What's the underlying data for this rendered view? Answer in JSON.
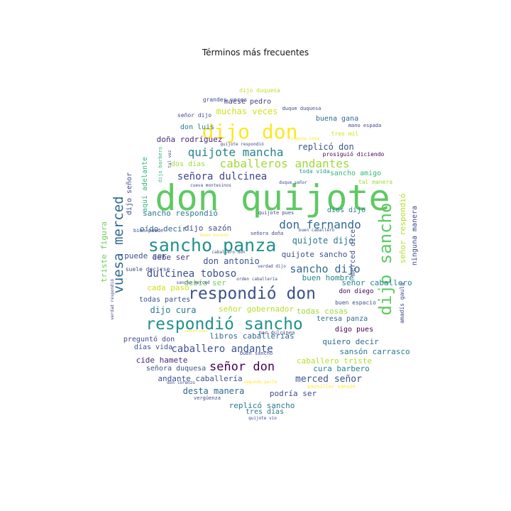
{
  "title": "Términos más frecuentes",
  "words": [
    {
      "text": "don quijote",
      "color": "#5ec962"
    },
    {
      "text": "dijo don",
      "color": "#fde725"
    },
    {
      "text": "sancho panza",
      "color": "#21918c"
    },
    {
      "text": "respondió don",
      "color": "#3b528b"
    },
    {
      "text": "respondió sancho",
      "color": "#21918c"
    },
    {
      "text": "dijo sancho",
      "color": "#5ec962"
    },
    {
      "text": "vuesa merced",
      "color": "#31688e"
    },
    {
      "text": "caballeros andantes",
      "color": "#a0da39"
    },
    {
      "text": "quijote mancha",
      "color": "#26828e"
    },
    {
      "text": "señora dulcinea",
      "color": "#414487"
    },
    {
      "text": "don fernando",
      "color": "#31688e"
    },
    {
      "text": "dulcinea toboso",
      "color": "#3b528b"
    },
    {
      "text": "sancho dijo",
      "color": "#31688e"
    },
    {
      "text": "señor don",
      "color": "#440154"
    },
    {
      "text": "caballero andante",
      "color": "#3b528b"
    },
    {
      "text": "muchas veces",
      "color": "#d0e11c"
    },
    {
      "text": "replicó don",
      "color": "#3b528b"
    },
    {
      "text": "sancho respondió",
      "color": "#2a788e"
    },
    {
      "text": "quijote dijo",
      "color": "#2a788e"
    },
    {
      "text": "quijote sancho",
      "color": "#3b528b"
    },
    {
      "text": "don antonio",
      "color": "#3b528b"
    },
    {
      "text": "merced señor",
      "color": "#3b528b"
    },
    {
      "text": "dijo cura",
      "color": "#2a788e"
    },
    {
      "text": "señor caballero",
      "color": "#26828e"
    },
    {
      "text": "todas cosas",
      "color": "#a0da39"
    },
    {
      "text": "buen hombre",
      "color": "#26828e"
    },
    {
      "text": "quiero decir",
      "color": "#31688e"
    },
    {
      "text": "desta manera",
      "color": "#31688e"
    },
    {
      "text": "replicó sancho",
      "color": "#2a788e"
    },
    {
      "text": "libros caballerías",
      "color": "#31688e"
    },
    {
      "text": "señor gobernador",
      "color": "#b5de2b"
    },
    {
      "text": "doña rodríguez",
      "color": "#482878"
    },
    {
      "text": "maese pedro",
      "color": "#443983"
    },
    {
      "text": "sancho amigo",
      "color": "#35b779"
    },
    {
      "text": "señor respondió",
      "color": "#b5de2b"
    },
    {
      "text": "ninguna manera",
      "color": "#3e4989"
    },
    {
      "text": "merced dice",
      "color": "#3b528b"
    },
    {
      "text": "triste figura",
      "color": "#6ece58"
    },
    {
      "text": "dijo sazón",
      "color": "#3e4989"
    },
    {
      "text": "oído decir",
      "color": "#31688e"
    },
    {
      "text": "debe ser",
      "color": "#443983"
    },
    {
      "text": "puede ser",
      "color": "#3b528b"
    },
    {
      "text": "cada paso",
      "color": "#d0e11c"
    },
    {
      "text": "debía ser",
      "color": "#6ece58"
    },
    {
      "text": "todas partes",
      "color": "#3b528b"
    },
    {
      "text": "cide hamete",
      "color": "#482878"
    },
    {
      "text": "sansón carrasco",
      "color": "#2a788e"
    },
    {
      "text": "caballero triste",
      "color": "#b5de2b"
    },
    {
      "text": "cura barbero",
      "color": "#26828e"
    },
    {
      "text": "señora duquesa",
      "color": "#3b528b"
    },
    {
      "text": "andante caballería",
      "color": "#3b528b"
    },
    {
      "text": "podría ser",
      "color": "#3e4989"
    },
    {
      "text": "tres días",
      "color": "#2a788e"
    },
    {
      "text": "digo pues",
      "color": "#440154"
    },
    {
      "text": "teresa panza",
      "color": "#31688e"
    },
    {
      "text": "don diego",
      "color": "#440154"
    },
    {
      "text": "preguntó don",
      "color": "#3e4989"
    },
    {
      "text": "días vida",
      "color": "#3b528b"
    },
    {
      "text": "don luis",
      "color": "#2a788e"
    },
    {
      "text": "dios dijo",
      "color": "#26828e"
    },
    {
      "text": "dos días",
      "color": "#a0da39"
    },
    {
      "text": "buena gana",
      "color": "#31688e"
    },
    {
      "text": "prosiguió diciendo",
      "color": "#440154"
    },
    {
      "text": "dijo señor",
      "color": "#3e4989"
    },
    {
      "text": "aquí adelante",
      "color": "#35b779"
    },
    {
      "text": "tres mil",
      "color": "#d0e11c"
    },
    {
      "text": "toda vida",
      "color": "#1f9e89"
    },
    {
      "text": "tal manera",
      "color": "#a0da39"
    },
    {
      "text": "amadís gaula",
      "color": "#3e4989"
    },
    {
      "text": "buen espacio",
      "color": "#3b528b"
    },
    {
      "text": "dijo duquesa",
      "color": "#bddf26"
    },
    {
      "text": "grandes voces",
      "color": "#3e4989"
    },
    {
      "text": "duque duquesa",
      "color": "#3e4989"
    },
    {
      "text": "señor dijo",
      "color": "#3e4989"
    },
    {
      "text": "mano espada",
      "color": "#3e4989"
    },
    {
      "text": "quijote respondió",
      "color": "#3e4989"
    },
    {
      "text": "ninguna cosa",
      "color": "#fde725"
    },
    {
      "text": "dijo barbero",
      "color": "#35b779"
    },
    {
      "text": "cueva montesinos",
      "color": "#3e4989"
    },
    {
      "text": "duque señor",
      "color": "#3e4989"
    },
    {
      "text": "quijote pues",
      "color": "#3e4989"
    },
    {
      "text": "bien puede",
      "color": "#3e4989"
    },
    {
      "text": "buen suceso",
      "color": "#fde725"
    },
    {
      "text": "señora doña",
      "color": "#3e4989"
    },
    {
      "text": "buen caballero",
      "color": "#3e4989"
    },
    {
      "text": "caballero don",
      "color": "#3e4989"
    },
    {
      "text": "suele decirse",
      "color": "#3e4989"
    },
    {
      "text": "verdad dijo",
      "color": "#3e4989"
    },
    {
      "text": "orden caballería",
      "color": "#3e4989"
    },
    {
      "text": "sancho merced",
      "color": "#3e4989"
    },
    {
      "text": "verdad respondió",
      "color": "#3e4989"
    },
    {
      "text": "par dulcinea",
      "color": "#3e4989"
    },
    {
      "text": "buen sancho",
      "color": "#3e4989"
    },
    {
      "text": "sancho pues",
      "color": "#fde725"
    },
    {
      "text": "don lorenzo",
      "color": "#3e4989"
    },
    {
      "text": "segundo parte",
      "color": "#fde725"
    },
    {
      "text": "bachiller sansón",
      "color": "#fde725"
    },
    {
      "text": "vergüenza",
      "color": "#3e4989"
    },
    {
      "text": "quijote vio",
      "color": "#3e4989"
    },
    {
      "text": "tal vez",
      "color": "#3e4989"
    }
  ]
}
